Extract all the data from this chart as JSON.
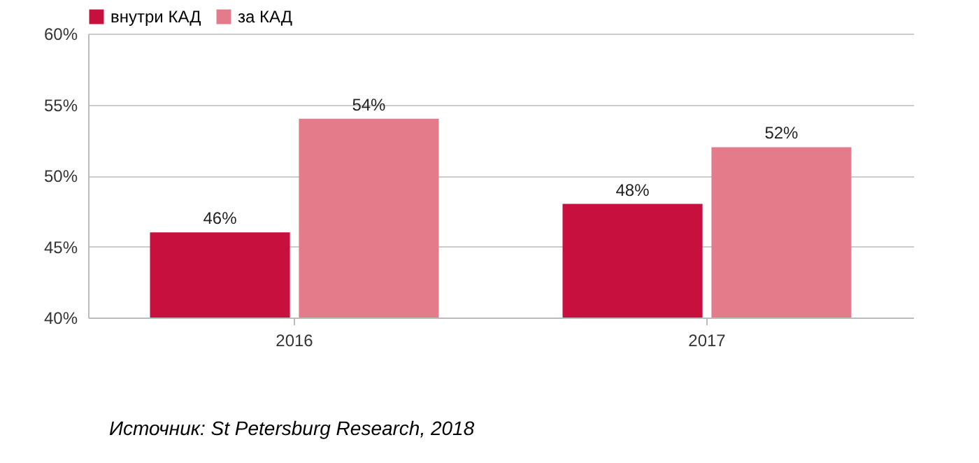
{
  "chart_data": {
    "type": "bar",
    "categories": [
      "2016",
      "2017"
    ],
    "series": [
      {
        "name": "внутри КАД",
        "color": "#c8103e",
        "values": [
          46,
          48
        ],
        "value_labels": [
          "46%",
          "48%"
        ]
      },
      {
        "name": "за КАД",
        "color": "#e37b8b",
        "values": [
          54,
          52
        ],
        "value_labels": [
          "54%",
          "52%"
        ]
      }
    ],
    "ylim": [
      40,
      60
    ],
    "yticks": [
      {
        "value": 40,
        "label": "40%"
      },
      {
        "value": 45,
        "label": "45%"
      },
      {
        "value": 50,
        "label": "50%"
      },
      {
        "value": 55,
        "label": "55%"
      },
      {
        "value": 60,
        "label": "60%"
      }
    ],
    "grid": "y",
    "legend": "top",
    "annotations": [
      "Источник: St Petersburg Research, 2018"
    ]
  }
}
